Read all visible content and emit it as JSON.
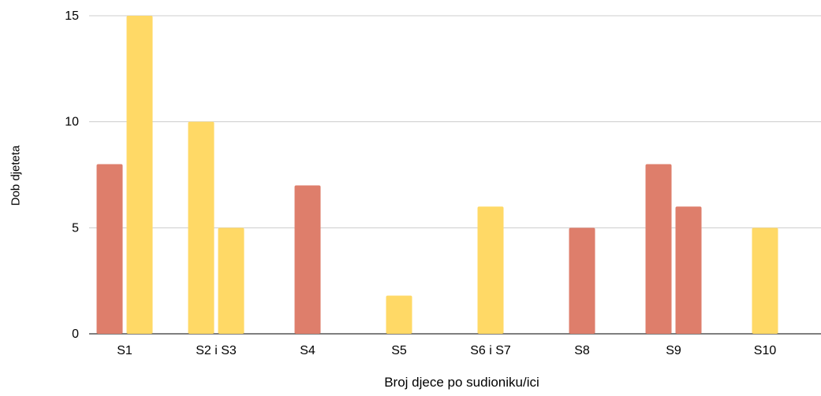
{
  "chart_data": {
    "type": "bar",
    "title": "",
    "xlabel": "Broj djece po sudioniku/ici",
    "ylabel": "Dob djeteta",
    "ylim": [
      0,
      15
    ],
    "yticks": [
      "0",
      "5",
      "10",
      "15"
    ],
    "grid": true,
    "legend": "none",
    "colors": {
      "red": "#DE7E6B",
      "yellow": "#FFD966",
      "grid": "#CCCCCC",
      "axis": "#333333"
    },
    "categories": [
      "S1",
      "S2 i S3",
      "S4",
      "S5",
      "S6 i S7",
      "S8",
      "S9",
      "S10"
    ],
    "bars": [
      {
        "category": "S1",
        "values": [
          {
            "value": 8,
            "color": "red"
          },
          {
            "value": 15,
            "color": "yellow"
          }
        ]
      },
      {
        "category": "S2 i S3",
        "values": [
          {
            "value": 10,
            "color": "yellow"
          },
          {
            "value": 5,
            "color": "yellow"
          }
        ]
      },
      {
        "category": "S4",
        "values": [
          {
            "value": 7,
            "color": "red"
          }
        ]
      },
      {
        "category": "S5",
        "values": [
          {
            "value": 1.8,
            "color": "yellow"
          }
        ]
      },
      {
        "category": "S6 i S7",
        "values": [
          {
            "value": 6,
            "color": "yellow"
          }
        ]
      },
      {
        "category": "S8",
        "values": [
          {
            "value": 5,
            "color": "red"
          }
        ]
      },
      {
        "category": "S9",
        "values": [
          {
            "value": 8,
            "color": "red"
          },
          {
            "value": 6,
            "color": "red"
          }
        ]
      },
      {
        "category": "S10",
        "values": [
          {
            "value": 5,
            "color": "yellow"
          }
        ]
      }
    ]
  }
}
